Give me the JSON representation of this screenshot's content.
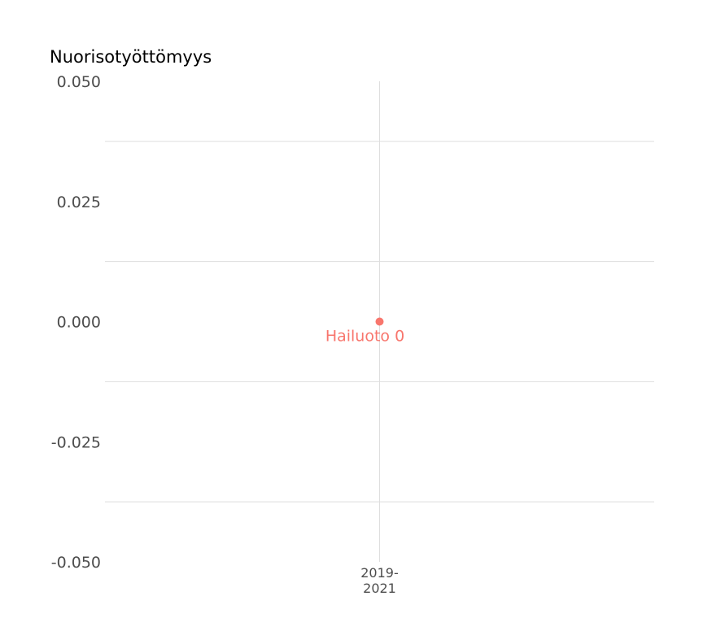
{
  "chart_data": {
    "type": "scatter",
    "title": "Nuorisotyöttömyys",
    "xlabel": "",
    "ylabel": "",
    "categories": [
      "2019-2021"
    ],
    "x_tick_lines": [
      "2019-",
      "2021"
    ],
    "ylim": [
      -0.05,
      0.05
    ],
    "y_ticks": [
      0.05,
      0.025,
      0.0,
      -0.025,
      -0.05
    ],
    "y_tick_labels": [
      "0.050",
      "0.025",
      "0.000",
      "-0.025",
      "-0.050"
    ],
    "grid": true,
    "series": [
      {
        "color": "#f8766d",
        "points": [
          {
            "x": "2019-2021",
            "y": 0,
            "label": "Hailuoto 0"
          }
        ]
      }
    ]
  }
}
